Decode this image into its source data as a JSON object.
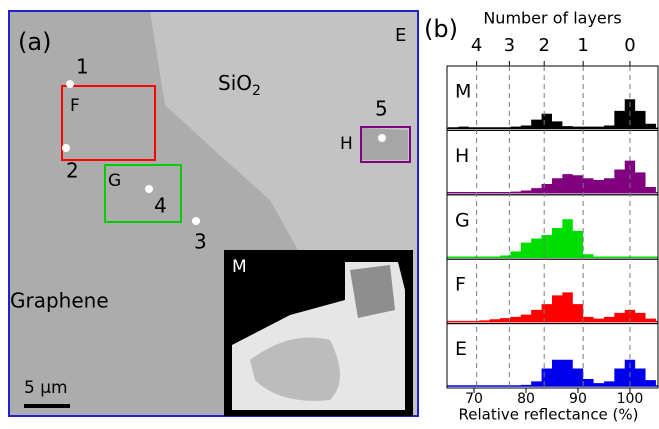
{
  "image_panel": {
    "panel_label": "(a)",
    "corner_label": "E",
    "substrate": "SiO",
    "substrate_sub": "2",
    "flake": "Graphene",
    "scale_bar": "5 µm",
    "points": [
      "1",
      "2",
      "3",
      "4",
      "5"
    ],
    "regions": [
      "F",
      "G",
      "H"
    ],
    "inset_label": "M"
  },
  "panel_b_label": "(b)",
  "chart_data": [
    {
      "type": "area",
      "label": "M",
      "color": "#000000",
      "xlim": [
        64.8,
        105.4
      ],
      "ylim": [
        0,
        1
      ],
      "x2label": "Number of layers",
      "x2ticks": [
        {
          "value": 70.5,
          "label": "4"
        },
        {
          "value": 76.8,
          "label": "3"
        },
        {
          "value": 83.5,
          "label": "2"
        },
        {
          "value": 91,
          "label": "1"
        },
        {
          "value": 100,
          "label": "0"
        }
      ],
      "x": [
        66,
        68,
        70,
        72,
        74,
        76,
        78,
        80,
        82,
        84,
        86,
        88,
        90,
        92,
        94,
        96,
        98,
        100,
        102,
        104
      ],
      "values": [
        0.02,
        0.03,
        0.02,
        0.02,
        0.02,
        0.02,
        0.03,
        0.05,
        0.15,
        0.25,
        0.12,
        0.04,
        0.03,
        0.03,
        0.03,
        0.05,
        0.3,
        0.5,
        0.3,
        0.08
      ]
    },
    {
      "type": "area",
      "label": "H",
      "color": "#800080",
      "xlim": [
        64.8,
        105.4
      ],
      "ylim": [
        0,
        1
      ],
      "x": [
        66,
        68,
        70,
        72,
        74,
        76,
        78,
        80,
        82,
        84,
        86,
        88,
        90,
        92,
        94,
        96,
        98,
        100,
        102,
        104
      ],
      "values": [
        0,
        0,
        0,
        0,
        0,
        0.01,
        0.02,
        0.04,
        0.08,
        0.15,
        0.25,
        0.32,
        0.3,
        0.25,
        0.22,
        0.25,
        0.4,
        0.55,
        0.35,
        0.1
      ]
    },
    {
      "type": "area",
      "label": "G",
      "color": "#00dd00",
      "xlim": [
        64.8,
        105.4
      ],
      "ylim": [
        0,
        1
      ],
      "x": [
        66,
        68,
        70,
        72,
        74,
        76,
        78,
        80,
        82,
        84,
        86,
        88,
        90,
        92,
        94,
        96,
        98,
        100,
        102,
        104
      ],
      "values": [
        0,
        0,
        0,
        0,
        0.01,
        0.03,
        0.1,
        0.25,
        0.32,
        0.38,
        0.5,
        0.65,
        0.45,
        0.05,
        0,
        0,
        0,
        0,
        0,
        0
      ]
    },
    {
      "type": "area",
      "label": "F",
      "color": "#ff0000",
      "xlim": [
        64.8,
        105.4
      ],
      "ylim": [
        0,
        1
      ],
      "x": [
        66,
        68,
        70,
        72,
        74,
        76,
        78,
        80,
        82,
        84,
        86,
        88,
        90,
        92,
        94,
        96,
        98,
        100,
        102,
        104
      ],
      "values": [
        0,
        0,
        0,
        0.02,
        0.04,
        0.06,
        0.08,
        0.12,
        0.2,
        0.3,
        0.45,
        0.5,
        0.3,
        0.08,
        0.05,
        0.08,
        0.15,
        0.2,
        0.15,
        0.05
      ]
    },
    {
      "type": "area",
      "label": "E",
      "color": "#0000ee",
      "xlim": [
        64.8,
        105.4
      ],
      "ylim": [
        0,
        1
      ],
      "xlabel": "Relative reflectance (%)",
      "xticks": [
        70,
        80,
        90,
        100
      ],
      "x": [
        66,
        68,
        70,
        72,
        74,
        76,
        78,
        80,
        82,
        84,
        86,
        88,
        90,
        92,
        94,
        96,
        98,
        100,
        102,
        104
      ],
      "values": [
        0,
        0,
        0,
        0,
        0,
        0,
        0,
        0.02,
        0.08,
        0.3,
        0.45,
        0.45,
        0.3,
        0.12,
        0.05,
        0.08,
        0.3,
        0.45,
        0.3,
        0.1
      ]
    }
  ]
}
